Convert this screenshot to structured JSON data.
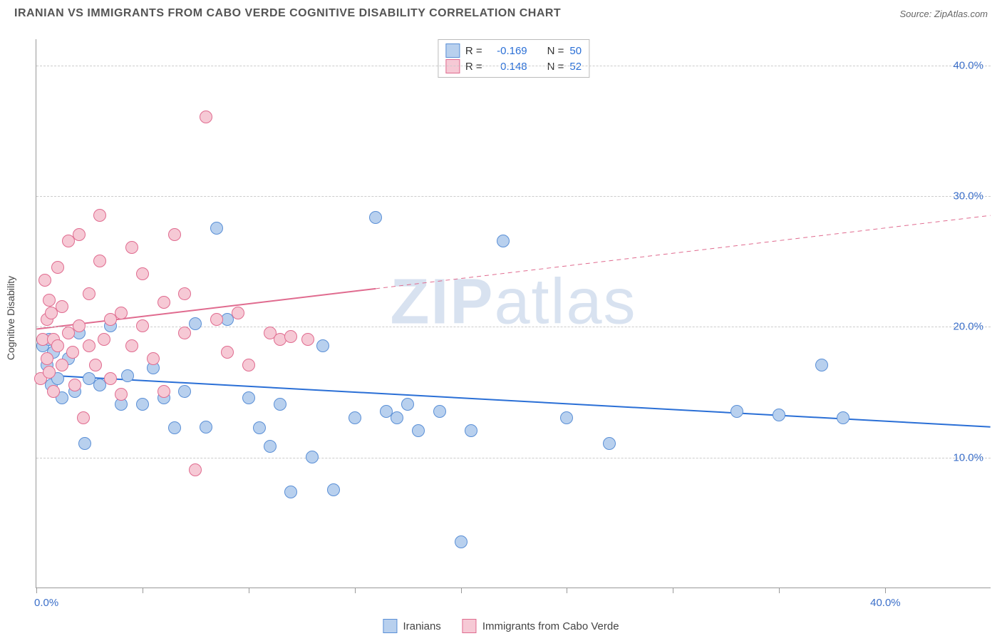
{
  "title": "IRANIAN VS IMMIGRANTS FROM CABO VERDE COGNITIVE DISABILITY CORRELATION CHART",
  "source": "Source: ZipAtlas.com",
  "watermark": {
    "part1": "ZIP",
    "part2": "atlas"
  },
  "ylabel": "Cognitive Disability",
  "chart": {
    "type": "scatter",
    "xlim": [
      0,
      45
    ],
    "ylim": [
      0,
      42
    ],
    "x_ticks": [
      0,
      5,
      10,
      15,
      20,
      25,
      30,
      35,
      40
    ],
    "y_gridlines": [
      10,
      20,
      30,
      40
    ],
    "x_axis_label_left": "0.0%",
    "x_axis_label_right": "40.0%",
    "y_tick_labels": [
      "10.0%",
      "20.0%",
      "30.0%",
      "40.0%"
    ],
    "background_color": "#ffffff",
    "grid_color": "#cccccc",
    "series": [
      {
        "name": "Iranians",
        "fill": "#b8d0ee",
        "stroke": "#5a8fd6",
        "r_value": "-0.169",
        "n_value": "50",
        "trend": {
          "x1": 0,
          "y1": 16.3,
          "x2": 45,
          "y2": 12.3,
          "solid_until_x": 45,
          "color": "#2a6fd6",
          "width": 2
        },
        "points": [
          [
            0.3,
            18.5
          ],
          [
            0.5,
            17.0
          ],
          [
            0.6,
            19.0
          ],
          [
            0.7,
            15.5
          ],
          [
            0.8,
            18.0
          ],
          [
            1.0,
            16.0
          ],
          [
            1.2,
            14.5
          ],
          [
            1.5,
            17.5
          ],
          [
            1.8,
            15.0
          ],
          [
            2.0,
            19.5
          ],
          [
            2.3,
            11.0
          ],
          [
            2.5,
            16.0
          ],
          [
            3.0,
            15.5
          ],
          [
            3.5,
            20.0
          ],
          [
            4.0,
            14.0
          ],
          [
            4.3,
            16.2
          ],
          [
            5.0,
            14.0
          ],
          [
            5.5,
            16.8
          ],
          [
            6.0,
            14.5
          ],
          [
            6.5,
            12.2
          ],
          [
            7.0,
            15.0
          ],
          [
            7.5,
            20.2
          ],
          [
            8.0,
            12.3
          ],
          [
            8.5,
            27.5
          ],
          [
            9.0,
            20.5
          ],
          [
            10.0,
            14.5
          ],
          [
            10.5,
            12.2
          ],
          [
            11.0,
            10.8
          ],
          [
            11.5,
            14.0
          ],
          [
            12.0,
            7.3
          ],
          [
            13.0,
            10.0
          ],
          [
            13.5,
            18.5
          ],
          [
            14.0,
            7.5
          ],
          [
            15.0,
            13.0
          ],
          [
            16.0,
            28.3
          ],
          [
            16.5,
            13.5
          ],
          [
            17.0,
            13.0
          ],
          [
            17.5,
            14.0
          ],
          [
            18.0,
            12.0
          ],
          [
            19.0,
            13.5
          ],
          [
            20.0,
            3.5
          ],
          [
            20.5,
            12.0
          ],
          [
            22.0,
            26.5
          ],
          [
            25.0,
            13.0
          ],
          [
            27.0,
            11.0
          ],
          [
            33.0,
            13.5
          ],
          [
            35.0,
            13.2
          ],
          [
            37.0,
            17.0
          ],
          [
            38.0,
            13.0
          ]
        ]
      },
      {
        "name": "Immigrants from Cabo Verde",
        "fill": "#f6c9d5",
        "stroke": "#e06b8f",
        "r_value": "0.148",
        "n_value": "52",
        "trend": {
          "x1": 0,
          "y1": 19.8,
          "x2": 45,
          "y2": 28.5,
          "solid_until_x": 16,
          "color": "#e06b8f",
          "width": 2
        },
        "points": [
          [
            0.2,
            16.0
          ],
          [
            0.3,
            19.0
          ],
          [
            0.4,
            23.5
          ],
          [
            0.5,
            20.5
          ],
          [
            0.5,
            17.5
          ],
          [
            0.6,
            22.0
          ],
          [
            0.6,
            16.5
          ],
          [
            0.7,
            21.0
          ],
          [
            0.8,
            19.0
          ],
          [
            0.8,
            15.0
          ],
          [
            1.0,
            18.5
          ],
          [
            1.0,
            24.5
          ],
          [
            1.2,
            21.5
          ],
          [
            1.2,
            17.0
          ],
          [
            1.5,
            26.5
          ],
          [
            1.5,
            19.5
          ],
          [
            1.7,
            18.0
          ],
          [
            1.8,
            15.5
          ],
          [
            2.0,
            20.0
          ],
          [
            2.0,
            27.0
          ],
          [
            2.2,
            13.0
          ],
          [
            2.5,
            22.5
          ],
          [
            2.5,
            18.5
          ],
          [
            2.8,
            17.0
          ],
          [
            3.0,
            28.5
          ],
          [
            3.0,
            25.0
          ],
          [
            3.2,
            19.0
          ],
          [
            3.5,
            20.5
          ],
          [
            3.5,
            16.0
          ],
          [
            4.0,
            21.0
          ],
          [
            4.0,
            14.8
          ],
          [
            4.5,
            26.0
          ],
          [
            4.5,
            18.5
          ],
          [
            5.0,
            24.0
          ],
          [
            5.0,
            20.0
          ],
          [
            5.5,
            17.5
          ],
          [
            6.0,
            21.8
          ],
          [
            6.0,
            15.0
          ],
          [
            6.5,
            27.0
          ],
          [
            7.0,
            19.5
          ],
          [
            7.0,
            22.5
          ],
          [
            7.5,
            9.0
          ],
          [
            8.0,
            36.0
          ],
          [
            8.5,
            20.5
          ],
          [
            9.0,
            18.0
          ],
          [
            9.5,
            21.0
          ],
          [
            10.0,
            17.0
          ],
          [
            11.0,
            19.5
          ],
          [
            11.5,
            19.0
          ],
          [
            12.0,
            19.2
          ],
          [
            12.8,
            19.0
          ]
        ]
      }
    ]
  },
  "legend_top": {
    "r_label": "R =",
    "n_label": "N ="
  },
  "colors": {
    "stat_value": "#2a6fd6",
    "stat_label": "#333333"
  }
}
